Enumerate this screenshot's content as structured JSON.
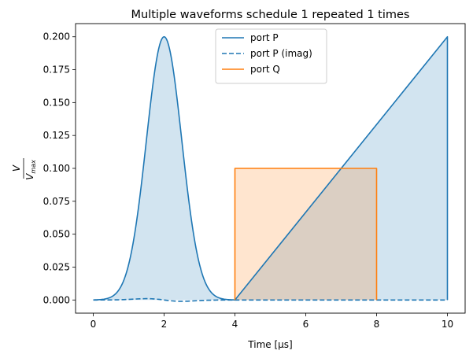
{
  "chart_data": {
    "type": "line",
    "title": "Multiple waveforms schedule 1 repeated 1 times",
    "xlabel": "Time [μs]",
    "ylabel": {
      "numerator": "V",
      "denominator": "V",
      "denominator_sub": "max"
    },
    "xlim": [
      -0.5,
      10.5
    ],
    "ylim": [
      -0.01,
      0.21
    ],
    "xticks": [
      0,
      2,
      4,
      6,
      8,
      10
    ],
    "xtick_labels": [
      "0",
      "2",
      "4",
      "6",
      "8",
      "10"
    ],
    "yticks": [
      0.0,
      0.025,
      0.05,
      0.075,
      0.1,
      0.125,
      0.15,
      0.175,
      0.2
    ],
    "ytick_labels": [
      "0.000",
      "0.025",
      "0.050",
      "0.075",
      "0.100",
      "0.125",
      "0.150",
      "0.175",
      "0.200"
    ],
    "legend_position": "top-center",
    "series": [
      {
        "name": "port P",
        "color": "#1f77b4",
        "style": "solid",
        "fill": true,
        "components": [
          {
            "kind": "gaussian",
            "x_start": 0,
            "x_end": 4,
            "amplitude": 0.2,
            "center": 2.0,
            "sigma": 0.5
          },
          {
            "kind": "line",
            "x": [
              4,
              10,
              10
            ],
            "y": [
              0.0,
              0.2,
              0.0
            ]
          }
        ]
      },
      {
        "name": "port P (imag)",
        "color": "#1f77b4",
        "style": "dashed",
        "fill": false,
        "components": [
          {
            "kind": "derivative-gaussian",
            "x_start": 0,
            "x_end": 4,
            "amplitude": 0.001,
            "center": 2.0,
            "sigma": 0.5
          },
          {
            "kind": "line",
            "x": [
              4,
              10
            ],
            "y": [
              0.0,
              0.0
            ]
          }
        ]
      },
      {
        "name": "port Q",
        "color": "#ff7f0e",
        "style": "solid",
        "fill": true,
        "components": [
          {
            "kind": "line",
            "x": [
              4,
              4,
              8,
              8
            ],
            "y": [
              0.0,
              0.1,
              0.1,
              0.0
            ]
          }
        ]
      }
    ]
  }
}
